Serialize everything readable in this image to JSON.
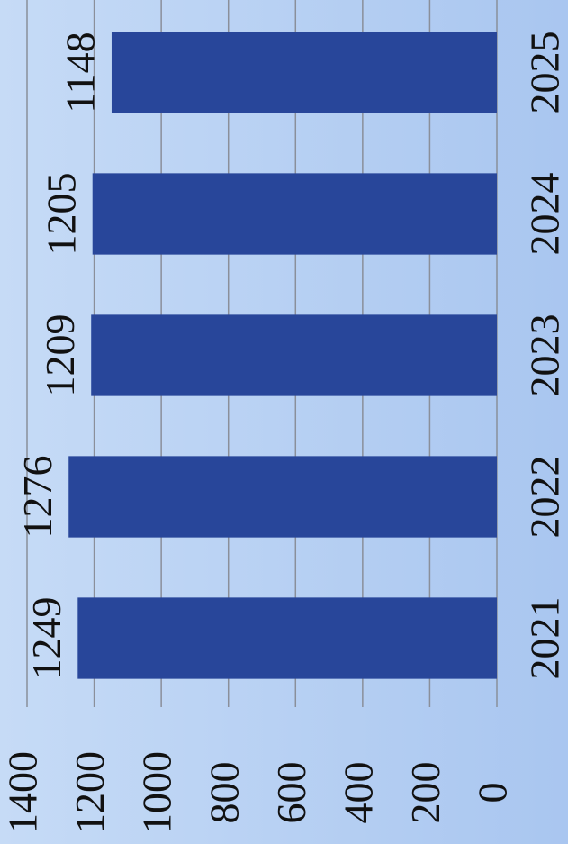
{
  "chart_data": {
    "type": "bar",
    "categories": [
      "2021",
      "2022",
      "2023",
      "2024",
      "2025"
    ],
    "values": [
      1249,
      1276,
      1209,
      1205,
      1148
    ],
    "color": "#28469a",
    "ylim": [
      0,
      1400
    ],
    "yticks": [
      0,
      200,
      400,
      600,
      800,
      1000,
      1200,
      1400
    ],
    "grid": true
  }
}
